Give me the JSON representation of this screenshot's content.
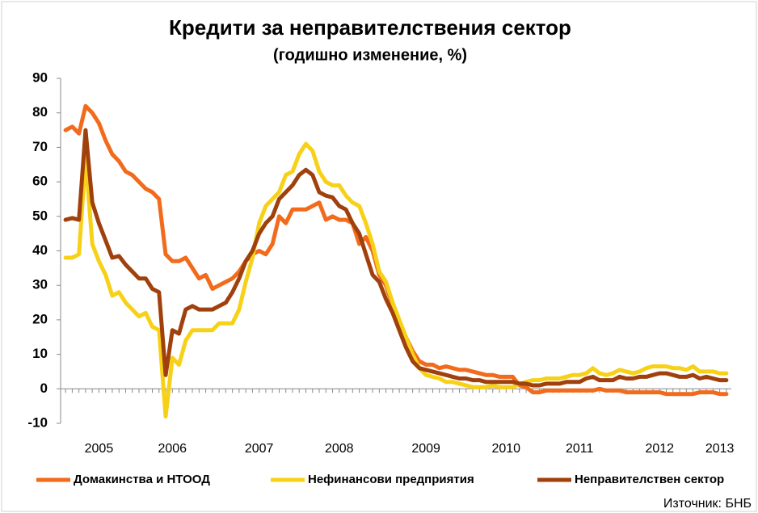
{
  "chart_data": {
    "type": "line",
    "title": "Кредити за неправителствения сектор",
    "subtitle": "(годишно изменение, %)",
    "source": "Източник: БНБ",
    "categories": [
      null,
      null,
      null,
      null,
      null,
      "2005",
      null,
      null,
      null,
      null,
      null,
      null,
      null,
      null,
      null,
      null,
      "2006",
      null,
      null,
      null,
      null,
      null,
      null,
      null,
      null,
      null,
      null,
      null,
      null,
      "2007",
      null,
      null,
      null,
      null,
      null,
      null,
      null,
      null,
      null,
      null,
      null,
      "2008",
      null,
      null,
      null,
      null,
      null,
      null,
      null,
      null,
      null,
      null,
      null,
      null,
      "2009",
      null,
      null,
      null,
      null,
      null,
      null,
      null,
      null,
      null,
      null,
      null,
      "2010",
      null,
      null,
      null,
      null,
      null,
      null,
      null,
      null,
      null,
      null,
      "2011",
      null,
      null,
      null,
      null,
      null,
      null,
      null,
      null,
      null,
      null,
      null,
      "2012",
      null,
      null,
      null,
      null,
      null,
      null,
      null,
      null,
      "2013",
      null
    ],
    "ylim": [
      -10,
      90
    ],
    "yticks": [
      -10,
      0,
      10,
      20,
      30,
      40,
      50,
      60,
      70,
      80,
      90
    ],
    "grid": false,
    "legend": "bottom",
    "series": [
      {
        "name": "Домакинства и НТООД",
        "color": "#f26b1d",
        "values": [
          75,
          76,
          74,
          82,
          80,
          77,
          72,
          68,
          66,
          63,
          62,
          60,
          58,
          57,
          55,
          39,
          37,
          37,
          38,
          35,
          32,
          33,
          29,
          30,
          31,
          32,
          34,
          37,
          39,
          40,
          39,
          42,
          50,
          48,
          52,
          52,
          52,
          53,
          54,
          49,
          50,
          49,
          49,
          48,
          42,
          44,
          40,
          33,
          30,
          24,
          19,
          15,
          11,
          8,
          7,
          7,
          6,
          6.5,
          6,
          5.5,
          5.5,
          5,
          4.5,
          4,
          4,
          3.5,
          3.5,
          3.5,
          1,
          0.5,
          -1,
          -1,
          -0.5,
          -0.5,
          -0.5,
          -0.5,
          -0.5,
          -0.5,
          -0.5,
          -0.5,
          0,
          -0.5,
          -0.5,
          -0.5,
          -1,
          -1,
          -1,
          -1,
          -1,
          -1,
          -1.5,
          -1.5,
          -1.5,
          -1.5,
          -1.5,
          -1,
          -1,
          -1,
          -1.5,
          -1.5
        ]
      },
      {
        "name": "Нефинансови предприятия",
        "color": "#f7d117",
        "values": [
          38,
          38,
          39,
          67,
          42,
          37,
          33,
          27,
          28,
          25,
          23,
          21,
          22,
          18,
          17,
          -8,
          9,
          7,
          14,
          17,
          17,
          17,
          17,
          19,
          19,
          19,
          23,
          31,
          38,
          48,
          53,
          55,
          57,
          62,
          63,
          68,
          71,
          69,
          63,
          60,
          59,
          59,
          56,
          54,
          53,
          48,
          42,
          34,
          31,
          25,
          20,
          15,
          10,
          6,
          4,
          3.5,
          3,
          2,
          2,
          1.5,
          1,
          0.5,
          0.5,
          0.5,
          1,
          0.5,
          0.5,
          0.5,
          1.5,
          2,
          2.5,
          2.5,
          3,
          3,
          3,
          3.5,
          4,
          4,
          4.5,
          6,
          4.5,
          4,
          4.5,
          5.5,
          5,
          4.5,
          5,
          6,
          6.5,
          6.5,
          6.5,
          6,
          6,
          5.5,
          6.5,
          5,
          5,
          5,
          4.5,
          4.5
        ]
      },
      {
        "name": "Неправителствен сектор",
        "color": "#a0410d",
        "values": [
          49,
          49.5,
          49,
          75,
          54,
          48,
          43,
          38,
          38.5,
          36,
          34,
          32,
          32,
          29,
          28,
          4,
          17,
          16,
          23,
          24,
          23,
          23,
          23,
          24,
          25,
          28,
          32,
          37,
          40,
          45,
          48,
          50,
          55,
          57,
          59,
          62,
          63.5,
          62,
          57,
          56,
          55.5,
          53,
          52,
          48,
          45,
          39,
          33,
          31,
          26,
          22,
          17,
          12,
          8,
          6,
          5.5,
          5,
          4.5,
          4,
          3.5,
          3,
          3,
          2.5,
          2.5,
          2,
          2,
          2,
          2,
          2,
          1.5,
          1.5,
          1,
          1,
          1.5,
          1.5,
          1.5,
          2,
          2,
          2,
          3,
          3.5,
          2.5,
          2.5,
          2.5,
          3.5,
          3,
          3,
          3.5,
          3.5,
          4,
          4.5,
          4.5,
          4,
          3.5,
          3.5,
          4,
          3,
          3.5,
          3,
          2.5,
          2.5
        ]
      }
    ]
  }
}
